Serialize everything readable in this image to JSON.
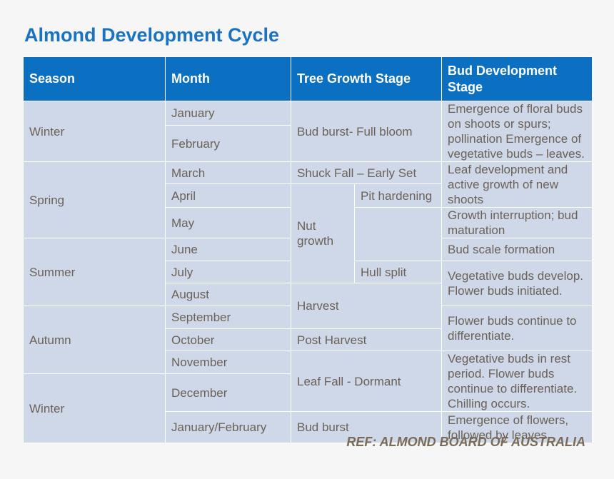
{
  "title": "Almond Development Cycle",
  "headers": {
    "season": "Season",
    "month": "Month",
    "tree": "Tree Growth Stage",
    "bud": "Bud Development Stage"
  },
  "seasons": {
    "winter1": "Winter",
    "spring": "Spring",
    "summer": "Summer",
    "autumn": "Autumn",
    "winter2": "Winter"
  },
  "months": [
    "January",
    "February",
    "March",
    "April",
    "May",
    "June",
    "July",
    "August",
    "September",
    "October",
    "November",
    "December",
    "January/February"
  ],
  "tree": {
    "bud_burst_full_bloom": "Bud burst- Full bloom",
    "shuck_fall": "Shuck Fall – Early Set",
    "nut_growth": "Nut growth",
    "pit_hardening": "Pit hardening",
    "hull_split": "Hull split",
    "harvest": "Harvest",
    "post_harvest": "Post Harvest",
    "leaf_fall": "Leaf Fall - Dormant",
    "bud_burst": "Bud burst"
  },
  "bud": {
    "b1": "Emergence of floral buds on shoots or spurs; pollination Emergence of vegetative buds – leaves.",
    "b2": "Leaf development and active growth of new shoots",
    "b3": "Growth interruption; bud maturation",
    "b4": "Bud scale formation",
    "b5": "Vegetative buds develop. Flower buds initiated.",
    "b6": "Flower buds continue to differentiate.",
    "b7": "Vegetative buds in rest period. Flower buds continue to differentiate. Chilling occurs.",
    "b8": "Emergence of flowers, followed by leaves"
  },
  "reference": "REF: ALMOND BOARD OF AUSTRALIA",
  "colors": {
    "title": "#1a73c2",
    "header_bg": "#0b6fc2",
    "cell_bg": "#cfd8e8",
    "cell_alt_bg": "#e6ebf3",
    "text": "#6b6156"
  }
}
